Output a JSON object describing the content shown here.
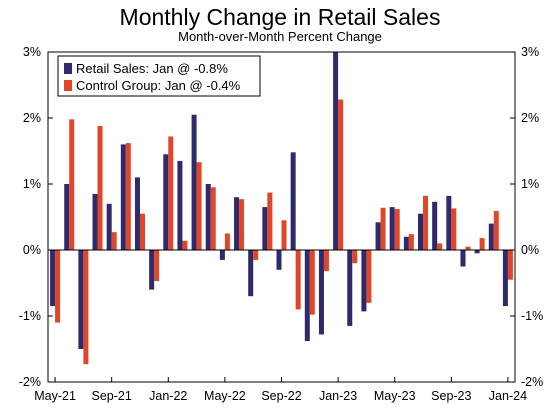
{
  "chart_data": {
    "type": "bar",
    "title": "Monthly Change in Retail Sales",
    "subtitle": "Month-over-Month Percent Change",
    "categories": [
      "May-21",
      "Jun-21",
      "Jul-21",
      "Aug-21",
      "Sep-21",
      "Oct-21",
      "Nov-21",
      "Dec-21",
      "Jan-22",
      "Feb-22",
      "Mar-22",
      "Apr-22",
      "May-22",
      "Jun-22",
      "Jul-22",
      "Aug-22",
      "Sep-22",
      "Oct-22",
      "Nov-22",
      "Dec-22",
      "Jan-23",
      "Feb-23",
      "Mar-23",
      "Apr-23",
      "May-23",
      "Jun-23",
      "Jul-23",
      "Aug-23",
      "Sep-23",
      "Oct-23",
      "Nov-23",
      "Dec-23",
      "Jan-24"
    ],
    "x_tick_labels": [
      "May-21",
      "Sep-21",
      "Jan-22",
      "May-22",
      "Sep-22",
      "Jan-23",
      "May-23",
      "Sep-23",
      "Jan-24"
    ],
    "x_tick_every": 4,
    "ylim": [
      -2,
      3
    ],
    "y_ticks": [
      -2,
      -1,
      0,
      1,
      2,
      3
    ],
    "y_tick_labels": [
      "-2%",
      "-1%",
      "0%",
      "1%",
      "2%",
      "3%"
    ],
    "grid": false,
    "legend_position": "top-left",
    "series": [
      {
        "name": "Retail Sales: Jan @ -0.8%",
        "color": "#2e2a6b",
        "values": [
          -0.85,
          1.0,
          -1.5,
          0.85,
          0.7,
          1.6,
          1.1,
          -0.6,
          1.45,
          1.35,
          2.05,
          1.0,
          -0.15,
          0.8,
          -0.7,
          0.65,
          -0.3,
          1.48,
          -1.38,
          -1.28,
          3.0,
          -1.15,
          -0.93,
          0.42,
          0.65,
          0.2,
          0.55,
          0.73,
          0.82,
          -0.25,
          -0.05,
          0.4,
          -0.85
        ]
      },
      {
        "name": "Control Group: Jan @ -0.4%",
        "color": "#e0462a",
        "values": [
          -1.1,
          1.98,
          -1.73,
          1.88,
          0.27,
          1.62,
          0.55,
          -0.47,
          1.72,
          0.14,
          1.33,
          0.95,
          0.25,
          0.77,
          -0.15,
          0.87,
          0.45,
          -0.9,
          -0.98,
          -0.32,
          2.28,
          -0.2,
          -0.8,
          0.64,
          0.62,
          0.24,
          0.82,
          0.1,
          0.63,
          0.05,
          0.18,
          0.59,
          -0.45
        ]
      }
    ]
  }
}
